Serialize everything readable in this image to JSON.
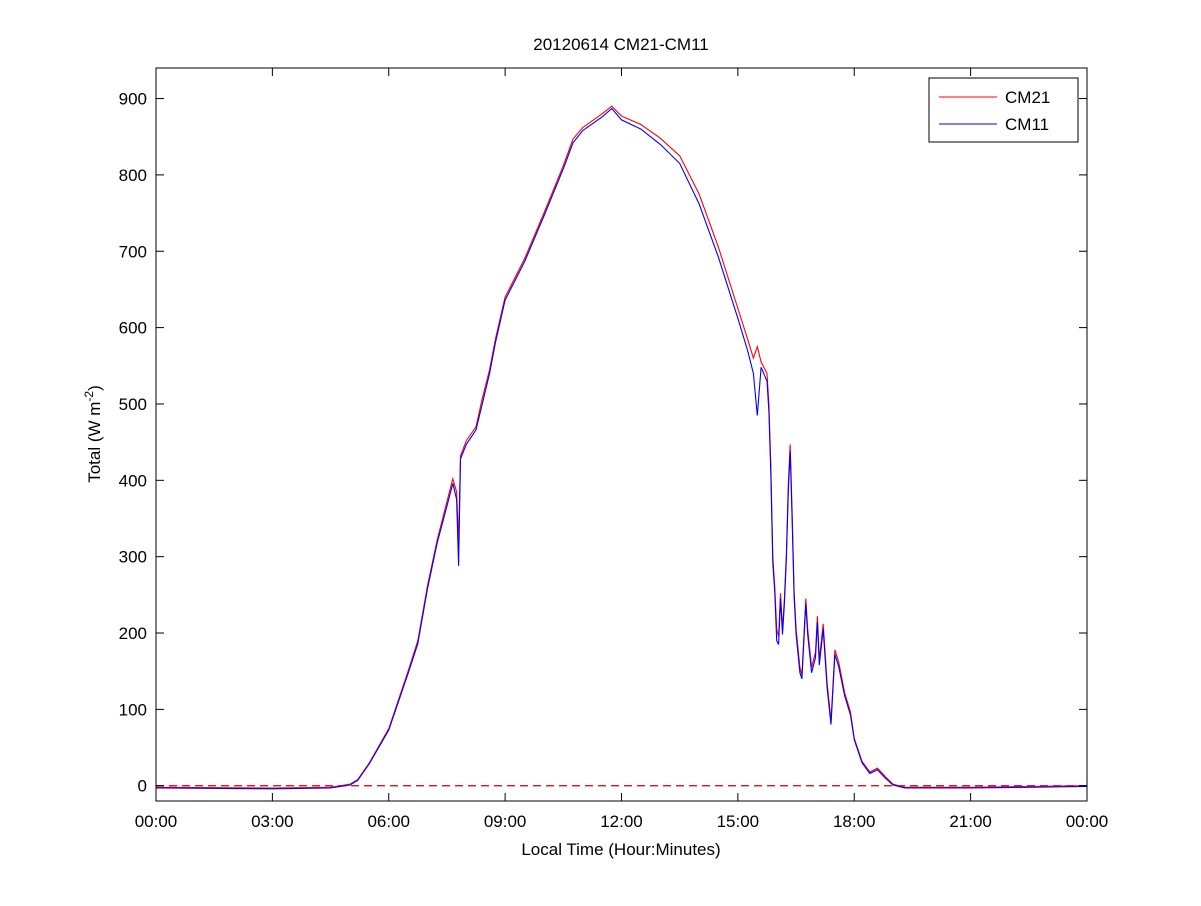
{
  "chart_data": {
    "type": "line",
    "title": "20120614 CM21-CM11",
    "xlabel": "Local Time (Hour:Minutes)",
    "ylabel": "Total (W m",
    "ylabel_sup": "-2",
    "ylabel_end": ")",
    "xlim": [
      "00:00",
      "24:00"
    ],
    "ylim": [
      -20,
      940
    ],
    "x_ticks": [
      "00:00",
      "03:00",
      "06:00",
      "09:00",
      "12:00",
      "15:00",
      "18:00",
      "21:00",
      "00:00"
    ],
    "y_ticks": [
      0,
      100,
      200,
      300,
      400,
      500,
      600,
      700,
      800,
      900
    ],
    "grid": false,
    "legend_position": "top-right",
    "reference_line": {
      "y": 0,
      "style": "dashed",
      "color": "#cc0000"
    },
    "series": [
      {
        "name": "CM21",
        "color": "#ff0000",
        "points": [
          [
            "00:00",
            -2
          ],
          [
            "03:00",
            -3
          ],
          [
            "04:30",
            -2
          ],
          [
            "05:00",
            2
          ],
          [
            "05:12",
            8
          ],
          [
            "05:30",
            30
          ],
          [
            "06:00",
            75
          ],
          [
            "06:30",
            150
          ],
          [
            "06:45",
            190
          ],
          [
            "07:00",
            262
          ],
          [
            "07:15",
            322
          ],
          [
            "07:30",
            372
          ],
          [
            "07:39",
            402
          ],
          [
            "07:45",
            385
          ],
          [
            "07:48",
            320
          ],
          [
            "07:51",
            432
          ],
          [
            "08:00",
            452
          ],
          [
            "08:15",
            470
          ],
          [
            "08:24",
            505
          ],
          [
            "08:36",
            545
          ],
          [
            "08:45",
            585
          ],
          [
            "09:00",
            640
          ],
          [
            "09:30",
            690
          ],
          [
            "10:00",
            750
          ],
          [
            "10:30",
            812
          ],
          [
            "10:45",
            847
          ],
          [
            "11:00",
            862
          ],
          [
            "11:30",
            880
          ],
          [
            "11:45",
            890
          ],
          [
            "12:00",
            877
          ],
          [
            "12:30",
            866
          ],
          [
            "13:00",
            848
          ],
          [
            "13:30",
            825
          ],
          [
            "14:00",
            775
          ],
          [
            "14:30",
            705
          ],
          [
            "14:45",
            665
          ],
          [
            "15:00",
            625
          ],
          [
            "15:15",
            585
          ],
          [
            "15:24",
            560
          ],
          [
            "15:30",
            575
          ],
          [
            "15:36",
            555
          ],
          [
            "15:45",
            540
          ],
          [
            "15:48",
            500
          ],
          [
            "15:51",
            420
          ],
          [
            "15:54",
            300
          ],
          [
            "15:57",
            262
          ],
          [
            "16:00",
            205
          ],
          [
            "16:03",
            195
          ],
          [
            "16:06",
            252
          ],
          [
            "16:09",
            205
          ],
          [
            "16:12",
            245
          ],
          [
            "16:15",
            305
          ],
          [
            "16:18",
            395
          ],
          [
            "16:21",
            447
          ],
          [
            "16:24",
            355
          ],
          [
            "16:27",
            255
          ],
          [
            "16:30",
            205
          ],
          [
            "16:36",
            155
          ],
          [
            "16:39",
            145
          ],
          [
            "16:45",
            245
          ],
          [
            "16:48",
            205
          ],
          [
            "16:54",
            155
          ],
          [
            "17:00",
            175
          ],
          [
            "17:03",
            222
          ],
          [
            "17:06",
            165
          ],
          [
            "17:12",
            212
          ],
          [
            "17:18",
            135
          ],
          [
            "17:24",
            85
          ],
          [
            "17:30",
            178
          ],
          [
            "17:36",
            162
          ],
          [
            "17:45",
            122
          ],
          [
            "17:54",
            97
          ],
          [
            "18:00",
            62
          ],
          [
            "18:12",
            32
          ],
          [
            "18:24",
            18
          ],
          [
            "18:36",
            23
          ],
          [
            "18:48",
            12
          ],
          [
            "19:00",
            2
          ],
          [
            "19:18",
            -2
          ],
          [
            "21:00",
            -2
          ],
          [
            "24:00",
            0
          ]
        ]
      },
      {
        "name": "CM11",
        "color": "#0000ff",
        "points": [
          [
            "00:00",
            -3
          ],
          [
            "03:00",
            -4
          ],
          [
            "04:30",
            -3
          ],
          [
            "05:00",
            1
          ],
          [
            "05:12",
            7
          ],
          [
            "05:30",
            29
          ],
          [
            "06:00",
            73
          ],
          [
            "06:30",
            147
          ],
          [
            "06:45",
            186
          ],
          [
            "07:00",
            258
          ],
          [
            "07:15",
            318
          ],
          [
            "07:30",
            366
          ],
          [
            "07:39",
            396
          ],
          [
            "07:45",
            375
          ],
          [
            "07:48",
            288
          ],
          [
            "07:51",
            428
          ],
          [
            "08:00",
            447
          ],
          [
            "08:15",
            466
          ],
          [
            "08:24",
            498
          ],
          [
            "08:36",
            540
          ],
          [
            "08:45",
            580
          ],
          [
            "09:00",
            636
          ],
          [
            "09:30",
            686
          ],
          [
            "10:00",
            746
          ],
          [
            "10:30",
            808
          ],
          [
            "10:45",
            842
          ],
          [
            "11:00",
            858
          ],
          [
            "11:30",
            876
          ],
          [
            "11:45",
            887
          ],
          [
            "12:00",
            872
          ],
          [
            "12:30",
            860
          ],
          [
            "13:00",
            840
          ],
          [
            "13:30",
            815
          ],
          [
            "14:00",
            762
          ],
          [
            "14:30",
            692
          ],
          [
            "14:45",
            652
          ],
          [
            "15:00",
            612
          ],
          [
            "15:15",
            570
          ],
          [
            "15:24",
            540
          ],
          [
            "15:30",
            485
          ],
          [
            "15:36",
            548
          ],
          [
            "15:45",
            530
          ],
          [
            "15:48",
            490
          ],
          [
            "15:51",
            410
          ],
          [
            "15:54",
            292
          ],
          [
            "15:57",
            255
          ],
          [
            "16:00",
            190
          ],
          [
            "16:03",
            185
          ],
          [
            "16:06",
            245
          ],
          [
            "16:09",
            198
          ],
          [
            "16:12",
            238
          ],
          [
            "16:15",
            298
          ],
          [
            "16:18",
            385
          ],
          [
            "16:21",
            438
          ],
          [
            "16:24",
            345
          ],
          [
            "16:27",
            248
          ],
          [
            "16:30",
            198
          ],
          [
            "16:36",
            148
          ],
          [
            "16:39",
            140
          ],
          [
            "16:45",
            238
          ],
          [
            "16:48",
            198
          ],
          [
            "16:54",
            148
          ],
          [
            "17:00",
            168
          ],
          [
            "17:03",
            215
          ],
          [
            "17:06",
            158
          ],
          [
            "17:12",
            205
          ],
          [
            "17:18",
            128
          ],
          [
            "17:24",
            80
          ],
          [
            "17:30",
            172
          ],
          [
            "17:36",
            156
          ],
          [
            "17:45",
            118
          ],
          [
            "17:54",
            93
          ],
          [
            "18:00",
            60
          ],
          [
            "18:12",
            30
          ],
          [
            "18:24",
            16
          ],
          [
            "18:36",
            21
          ],
          [
            "18:48",
            10
          ],
          [
            "19:00",
            1
          ],
          [
            "19:18",
            -3
          ],
          [
            "21:00",
            -3
          ],
          [
            "24:00",
            -1
          ]
        ]
      }
    ]
  }
}
